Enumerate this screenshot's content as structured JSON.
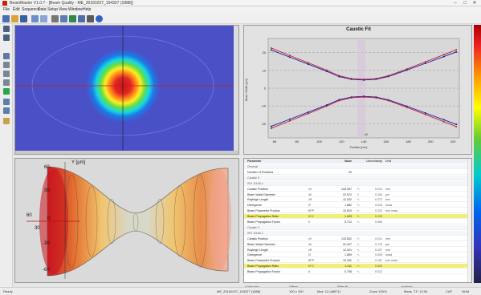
{
  "app": {
    "title": "BeamMaster V1.0.7 - [Beam Quality - ME_20181027_154327 (1888)]",
    "window_buttons": [
      "–",
      "□",
      "✕"
    ]
  },
  "menu": [
    "File",
    "Edit",
    "Sequence",
    "Data",
    "Setup",
    "View",
    "Window",
    "Help"
  ],
  "toolbar": {
    "icons": [
      "new-icon",
      "open-icon",
      "save-icon",
      "undo-icon",
      "redo-icon",
      "print-icon",
      "copy-icon",
      "chart-icon",
      "export-icon",
      "settings-icon",
      "help-icon"
    ]
  },
  "leftbar": {
    "icons": [
      "camera-icon",
      "camera-alt-icon",
      "target-icon",
      "wrench-icon",
      "wrench-alt-icon",
      "tool-icon",
      "play-icon",
      "layers-icon",
      "grid-icon",
      "measure-icon"
    ]
  },
  "caustic": {
    "title": "Caustic Fit",
    "xlabel": "Position [mm]",
    "ylabel": "Beam Width [µm]",
    "legend_box": "Legend"
  },
  "chart_data": [
    {
      "type": "line",
      "title": "Caustic Fit",
      "xlabel": "Position [mm]",
      "ylabel": "Beam Width [µm]",
      "xlim": [
        -5,
        305
      ],
      "ylim": [
        -28,
        28
      ],
      "x_ticks": [
        60,
        80,
        100,
        120,
        140,
        160,
        180,
        200,
        220
      ],
      "y_ticks": [
        20,
        10,
        0,
        -10,
        -20
      ],
      "grid": true,
      "series": [
        {
          "name": "",
          "color": "#1a1aa0",
          "x": [
            0,
            30,
            60,
            90,
            110,
            130,
            150,
            170,
            190,
            220,
            250,
            280,
            300
          ],
          "y": [
            21.5,
            17.5,
            13.5,
            9.5,
            6.5,
            5.0,
            4.6,
            5.0,
            6.6,
            10.2,
            14.0,
            17.8,
            20.4
          ]
        },
        {
          "name": "",
          "color": "#c02030",
          "x": [
            0,
            30,
            60,
            90,
            110,
            130,
            150,
            170,
            190,
            220,
            250,
            280,
            300
          ],
          "y": [
            22.6,
            18.4,
            14.3,
            10.1,
            7.0,
            5.4,
            5.0,
            5.4,
            7.0,
            10.8,
            14.8,
            18.9,
            21.6
          ]
        },
        {
          "name": "",
          "color": "#1a1aa0",
          "x": [
            0,
            30,
            60,
            90,
            110,
            130,
            150,
            170,
            190,
            220,
            250,
            280,
            300
          ],
          "y": [
            -21.5,
            -17.5,
            -13.5,
            -9.5,
            -6.5,
            -5.0,
            -4.6,
            -5.0,
            -6.6,
            -10.2,
            -14.0,
            -17.8,
            -20.4
          ]
        },
        {
          "name": "",
          "color": "#c02030",
          "x": [
            0,
            30,
            60,
            90,
            110,
            130,
            150,
            170,
            190,
            220,
            250,
            280,
            300
          ],
          "y": [
            -22.6,
            -18.4,
            -14.3,
            -10.1,
            -7.0,
            -5.4,
            -5.0,
            -5.4,
            -7.0,
            -10.8,
            -14.8,
            -18.9,
            -21.6
          ]
        }
      ],
      "annotations": [
        "z0"
      ]
    }
  ],
  "beam3d": {
    "axis_y_label": "Y [µm]",
    "y_ticks": [
      "60",
      "30",
      "0",
      "-30",
      "-60"
    ],
    "x_ticks": [
      "60",
      "30"
    ]
  },
  "results": {
    "headers": [
      "Parameter",
      "",
      "Value",
      "",
      "Uncertainty",
      "Unit"
    ],
    "rows": [
      {
        "type": "grp",
        "name": "General"
      },
      {
        "type": "row",
        "name": "Number of Positions",
        "sym": "",
        "val": "20",
        "pm": "",
        "unc": "",
        "unit": ""
      },
      {
        "type": "grp",
        "name": "Caustic X"
      },
      {
        "type": "grp",
        "name": "ISO 11146-1"
      },
      {
        "type": "row",
        "name": "Caustic Position",
        "sym": "z0",
        "val": "134.497",
        "pm": "+/-",
        "unc": "0.012",
        "unit": "mm"
      },
      {
        "type": "row",
        "name": "Beam Waist Diameter",
        "sym": "d0",
        "val": "22.972",
        "pm": "+/-",
        "unc": "0.154",
        "unit": "µm"
      },
      {
        "type": "row",
        "name": "Rayleigh Length",
        "sym": "zR",
        "val": "12.202",
        "pm": "+/-",
        "unc": "0.272",
        "unit": "mm"
      },
      {
        "type": "row",
        "name": "Divergence",
        "sym": "Θ",
        "val": "1.882",
        "pm": "+/-",
        "unc": "0.043",
        "unit": "mrad"
      },
      {
        "type": "row",
        "name": "Beam Parameter Product",
        "sym": "BPP",
        "val": "10.810",
        "pm": "+/-",
        "unc": "0.232",
        "unit": "mm mrad"
      },
      {
        "type": "hl",
        "name": "Beam Propagation Ratio",
        "sym": "M^2",
        "val": "1.493",
        "pm": "+/-",
        "unc": "0.033",
        "unit": ""
      },
      {
        "type": "row",
        "name": "Beam Propagation Factor",
        "sym": "K",
        "val": "0.712",
        "pm": "+/-",
        "unc": "0.006",
        "unit": ""
      },
      {
        "type": "grp",
        "name": "Caustic Y"
      },
      {
        "type": "grp",
        "name": "ISO 11146-1"
      },
      {
        "type": "row",
        "name": "Caustic Position",
        "sym": "z0",
        "val": "133.502",
        "pm": "+/-",
        "unc": "0.011",
        "unit": "mm"
      },
      {
        "type": "row",
        "name": "Beam Waist Diameter",
        "sym": "d0",
        "val": "22.427",
        "pm": "+/-",
        "unc": "0.176",
        "unit": "µm"
      },
      {
        "type": "row",
        "name": "Rayleigh Length",
        "sym": "zR",
        "val": "12.021",
        "pm": "+/-",
        "unc": "0.207",
        "unit": "mm"
      },
      {
        "type": "row",
        "name": "Divergence",
        "sym": "Θ",
        "val": "1.859",
        "pm": "+/-",
        "unc": "0.039",
        "unit": "mrad"
      },
      {
        "type": "row",
        "name": "Beam Parameter Product",
        "sym": "BPP",
        "val": "10.432",
        "pm": "+/-",
        "unc": "0.187",
        "unit": "mm mrad"
      },
      {
        "type": "hl",
        "name": "Beam Propagation Ratio",
        "sym": "M^2",
        "val": "1.411",
        "pm": "+/-",
        "unc": "0.025",
        "unit": ""
      },
      {
        "type": "row",
        "name": "Beam Propagation Factor",
        "sym": "K",
        "val": "0.708",
        "pm": "+/-",
        "unc": "0.012",
        "unit": ""
      }
    ]
  },
  "bottom_checks": [
    "Autoscale",
    "Offset",
    "Filter fit",
    "Isolines"
  ],
  "status": {
    "left": "Ready",
    "file": "ME_20181027_154327 (1888)",
    "pos": "100 x 100",
    "max": "Max: 12 (48871)",
    "zoom": "Zoom 100%",
    "time": "Meas. T.F. 12:00",
    "cap": "CAP",
    "num": "NUM"
  }
}
